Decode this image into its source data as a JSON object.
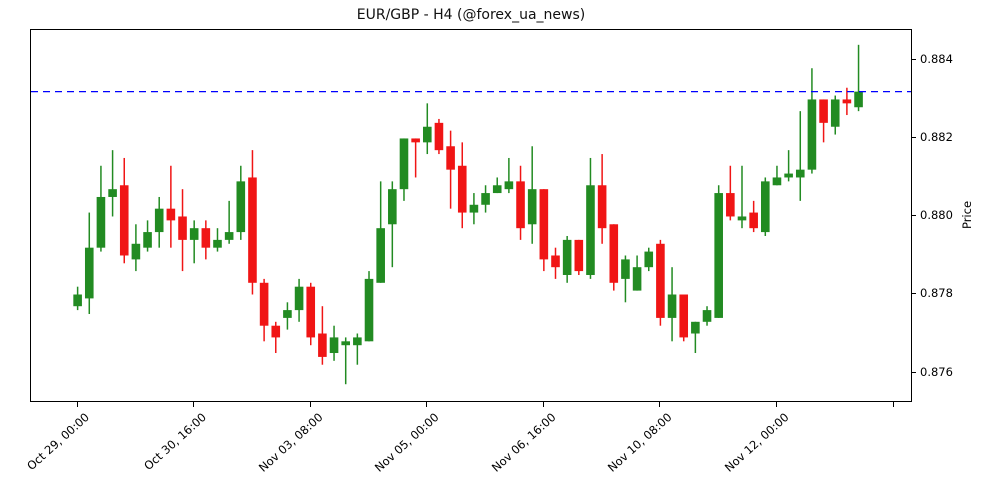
{
  "title": "EUR/GBP - H4 (@forex_ua_news)",
  "y_axis": {
    "label": "Price",
    "tick_labels": [
      "0.884",
      "0.882",
      "0.880",
      "0.878",
      "0.876"
    ],
    "tick_values": [
      0.884,
      0.882,
      0.88,
      0.878,
      0.876
    ]
  },
  "x_axis": {
    "ticks": [
      {
        "index": 0,
        "label": "Oct 29, 00:00"
      },
      {
        "index": 10,
        "label": "Oct 30, 16:00"
      },
      {
        "index": 20,
        "label": "Nov 03, 08:00"
      },
      {
        "index": 30,
        "label": "Nov 05, 00:00"
      },
      {
        "index": 40,
        "label": "Nov 06, 16:00"
      },
      {
        "index": 50,
        "label": "Nov 10, 08:00"
      },
      {
        "index": 60,
        "label": "Nov 12, 00:00"
      },
      {
        "index": 70,
        "label": ""
      }
    ]
  },
  "hline": {
    "value": 0.8832,
    "color": "#0000ff",
    "dash": "7 5",
    "width": 1.3
  },
  "colors": {
    "up": "#228b22",
    "down": "#f01515",
    "axis": "#000000",
    "background": "#ffffff"
  },
  "chart_data": {
    "type": "candlestick",
    "symbol": "EUR/GBP",
    "timeframe": "H4",
    "title": "EUR/GBP - H4 (@forex_ua_news)",
    "ylabel": "Price",
    "ylim": [
      0.87527,
      0.88478
    ],
    "xlim": [
      -4.0,
      71.5
    ],
    "grid": false,
    "candles": [
      {
        "t": "Oct 29, 00:00",
        "o": 0.8777,
        "h": 0.8782,
        "l": 0.8776,
        "c": 0.878
      },
      {
        "t": "Oct 29, 04:00",
        "o": 0.8779,
        "h": 0.8801,
        "l": 0.8775,
        "c": 0.8792
      },
      {
        "t": "Oct 29, 08:00",
        "o": 0.8792,
        "h": 0.8813,
        "l": 0.8791,
        "c": 0.8805
      },
      {
        "t": "Oct 29, 12:00",
        "o": 0.8805,
        "h": 0.8817,
        "l": 0.88,
        "c": 0.8807
      },
      {
        "t": "Oct 29, 16:00",
        "o": 0.8808,
        "h": 0.8815,
        "l": 0.8788,
        "c": 0.879
      },
      {
        "t": "Oct 29, 20:00",
        "o": 0.8789,
        "h": 0.8798,
        "l": 0.8786,
        "c": 0.8793
      },
      {
        "t": "Oct 30, 00:00",
        "o": 0.8792,
        "h": 0.8799,
        "l": 0.8791,
        "c": 0.8796
      },
      {
        "t": "Oct 30, 04:00",
        "o": 0.8796,
        "h": 0.8805,
        "l": 0.8792,
        "c": 0.8802
      },
      {
        "t": "Oct 30, 08:00",
        "o": 0.8802,
        "h": 0.8813,
        "l": 0.8792,
        "c": 0.8799
      },
      {
        "t": "Oct 30, 12:00",
        "o": 0.88,
        "h": 0.8807,
        "l": 0.8786,
        "c": 0.8794
      },
      {
        "t": "Oct 30, 16:00",
        "o": 0.8794,
        "h": 0.8799,
        "l": 0.8788,
        "c": 0.8797
      },
      {
        "t": "Oct 30, 20:00",
        "o": 0.8797,
        "h": 0.8799,
        "l": 0.8789,
        "c": 0.8792
      },
      {
        "t": "Oct 31, 00:00",
        "o": 0.8792,
        "h": 0.8797,
        "l": 0.8791,
        "c": 0.8794
      },
      {
        "t": "Oct 31, 04:00",
        "o": 0.8794,
        "h": 0.8804,
        "l": 0.8793,
        "c": 0.8796
      },
      {
        "t": "Oct 31, 08:00",
        "o": 0.8796,
        "h": 0.8813,
        "l": 0.8794,
        "c": 0.8809
      },
      {
        "t": "Oct 31, 12:00",
        "o": 0.881,
        "h": 0.8817,
        "l": 0.878,
        "c": 0.8783
      },
      {
        "t": "Oct 31, 16:00",
        "o": 0.8783,
        "h": 0.8784,
        "l": 0.8768,
        "c": 0.8772
      },
      {
        "t": "Oct 31, 20:00",
        "o": 0.8772,
        "h": 0.8773,
        "l": 0.8765,
        "c": 0.8769
      },
      {
        "t": "Nov 03, 00:00",
        "o": 0.8774,
        "h": 0.8778,
        "l": 0.8771,
        "c": 0.8776
      },
      {
        "t": "Nov 03, 04:00",
        "o": 0.8776,
        "h": 0.8784,
        "l": 0.8773,
        "c": 0.8782
      },
      {
        "t": "Nov 03, 08:00",
        "o": 0.8782,
        "h": 0.8783,
        "l": 0.8767,
        "c": 0.8769
      },
      {
        "t": "Nov 03, 12:00",
        "o": 0.877,
        "h": 0.8777,
        "l": 0.8762,
        "c": 0.8764
      },
      {
        "t": "Nov 03, 16:00",
        "o": 0.8765,
        "h": 0.8772,
        "l": 0.8763,
        "c": 0.8769
      },
      {
        "t": "Nov 03, 20:00",
        "o": 0.8767,
        "h": 0.8769,
        "l": 0.8757,
        "c": 0.8768
      },
      {
        "t": "Nov 04, 00:00",
        "o": 0.8767,
        "h": 0.877,
        "l": 0.8762,
        "c": 0.8769
      },
      {
        "t": "Nov 04, 04:00",
        "o": 0.8768,
        "h": 0.8786,
        "l": 0.8768,
        "c": 0.8784
      },
      {
        "t": "Nov 04, 08:00",
        "o": 0.8783,
        "h": 0.8809,
        "l": 0.8783,
        "c": 0.8797
      },
      {
        "t": "Nov 04, 12:00",
        "o": 0.8798,
        "h": 0.8809,
        "l": 0.8787,
        "c": 0.8807
      },
      {
        "t": "Nov 04, 16:00",
        "o": 0.8807,
        "h": 0.882,
        "l": 0.8804,
        "c": 0.882
      },
      {
        "t": "Nov 04, 20:00",
        "o": 0.882,
        "h": 0.882,
        "l": 0.881,
        "c": 0.8819
      },
      {
        "t": "Nov 05, 00:00",
        "o": 0.8819,
        "h": 0.8829,
        "l": 0.8816,
        "c": 0.8823
      },
      {
        "t": "Nov 05, 04:00",
        "o": 0.8824,
        "h": 0.8825,
        "l": 0.8816,
        "c": 0.8817
      },
      {
        "t": "Nov 05, 08:00",
        "o": 0.8818,
        "h": 0.8822,
        "l": 0.8802,
        "c": 0.8812
      },
      {
        "t": "Nov 05, 12:00",
        "o": 0.8813,
        "h": 0.8819,
        "l": 0.8797,
        "c": 0.8801
      },
      {
        "t": "Nov 05, 16:00",
        "o": 0.8801,
        "h": 0.8806,
        "l": 0.8798,
        "c": 0.8803
      },
      {
        "t": "Nov 05, 20:00",
        "o": 0.8803,
        "h": 0.8808,
        "l": 0.8801,
        "c": 0.8806
      },
      {
        "t": "Nov 06, 00:00",
        "o": 0.8806,
        "h": 0.881,
        "l": 0.8806,
        "c": 0.8808
      },
      {
        "t": "Nov 06, 04:00",
        "o": 0.8807,
        "h": 0.8815,
        "l": 0.8806,
        "c": 0.8809
      },
      {
        "t": "Nov 06, 08:00",
        "o": 0.8809,
        "h": 0.8813,
        "l": 0.8794,
        "c": 0.8797
      },
      {
        "t": "Nov 06, 12:00",
        "o": 0.8798,
        "h": 0.8818,
        "l": 0.8793,
        "c": 0.8807
      },
      {
        "t": "Nov 06, 16:00",
        "o": 0.8807,
        "h": 0.8807,
        "l": 0.8786,
        "c": 0.8789
      },
      {
        "t": "Nov 06, 20:00",
        "o": 0.879,
        "h": 0.8792,
        "l": 0.8784,
        "c": 0.8787
      },
      {
        "t": "Nov 07, 00:00",
        "o": 0.8785,
        "h": 0.8795,
        "l": 0.8783,
        "c": 0.8794
      },
      {
        "t": "Nov 07, 04:00",
        "o": 0.8794,
        "h": 0.8794,
        "l": 0.8785,
        "c": 0.8786
      },
      {
        "t": "Nov 07, 08:00",
        "o": 0.8785,
        "h": 0.8815,
        "l": 0.8784,
        "c": 0.8808
      },
      {
        "t": "Nov 07, 12:00",
        "o": 0.8808,
        "h": 0.8816,
        "l": 0.8793,
        "c": 0.8797
      },
      {
        "t": "Nov 07, 16:00",
        "o": 0.8798,
        "h": 0.8798,
        "l": 0.8781,
        "c": 0.8783
      },
      {
        "t": "Nov 07, 20:00",
        "o": 0.8784,
        "h": 0.879,
        "l": 0.8778,
        "c": 0.8789
      },
      {
        "t": "Nov 10, 00:00",
        "o": 0.8781,
        "h": 0.879,
        "l": 0.8781,
        "c": 0.8787
      },
      {
        "t": "Nov 10, 04:00",
        "o": 0.8787,
        "h": 0.8792,
        "l": 0.8786,
        "c": 0.8791
      },
      {
        "t": "Nov 10, 08:00",
        "o": 0.8793,
        "h": 0.8794,
        "l": 0.8772,
        "c": 0.8774
      },
      {
        "t": "Nov 10, 12:00",
        "o": 0.8774,
        "h": 0.8787,
        "l": 0.8768,
        "c": 0.878
      },
      {
        "t": "Nov 10, 16:00",
        "o": 0.878,
        "h": 0.878,
        "l": 0.8768,
        "c": 0.8769
      },
      {
        "t": "Nov 10, 20:00",
        "o": 0.877,
        "h": 0.8773,
        "l": 0.8765,
        "c": 0.8773
      },
      {
        "t": "Nov 11, 00:00",
        "o": 0.8773,
        "h": 0.8777,
        "l": 0.8772,
        "c": 0.8776
      },
      {
        "t": "Nov 11, 04:00",
        "o": 0.8774,
        "h": 0.8808,
        "l": 0.8774,
        "c": 0.8806
      },
      {
        "t": "Nov 11, 08:00",
        "o": 0.8806,
        "h": 0.8813,
        "l": 0.8799,
        "c": 0.88
      },
      {
        "t": "Nov 11, 12:00",
        "o": 0.8799,
        "h": 0.8813,
        "l": 0.8797,
        "c": 0.88
      },
      {
        "t": "Nov 11, 16:00",
        "o": 0.8801,
        "h": 0.8804,
        "l": 0.8796,
        "c": 0.8797
      },
      {
        "t": "Nov 11, 20:00",
        "o": 0.8796,
        "h": 0.881,
        "l": 0.8795,
        "c": 0.8809
      },
      {
        "t": "Nov 12, 00:00",
        "o": 0.8808,
        "h": 0.8813,
        "l": 0.8808,
        "c": 0.881
      },
      {
        "t": "Nov 12, 04:00",
        "o": 0.881,
        "h": 0.8817,
        "l": 0.8809,
        "c": 0.8811
      },
      {
        "t": "Nov 12, 08:00",
        "o": 0.881,
        "h": 0.8827,
        "l": 0.8804,
        "c": 0.8812
      },
      {
        "t": "Nov 12, 12:00",
        "o": 0.8812,
        "h": 0.8838,
        "l": 0.8811,
        "c": 0.883
      },
      {
        "t": "Nov 12, 16:00",
        "o": 0.883,
        "h": 0.883,
        "l": 0.8819,
        "c": 0.8824
      },
      {
        "t": "Nov 12, 20:00",
        "o": 0.8823,
        "h": 0.8831,
        "l": 0.8821,
        "c": 0.883
      },
      {
        "t": "Nov 13, 00:00",
        "o": 0.883,
        "h": 0.8833,
        "l": 0.8826,
        "c": 0.8829
      },
      {
        "t": "Nov 13, 04:00",
        "o": 0.8828,
        "h": 0.8844,
        "l": 0.8827,
        "c": 0.8832
      }
    ],
    "hline_value": 0.8832,
    "legend": null
  }
}
